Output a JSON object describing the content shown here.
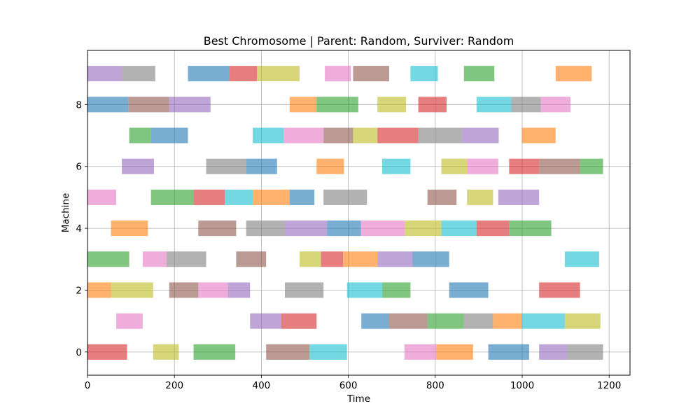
{
  "chart_data": {
    "type": "gantt",
    "title": "Best Chromosome | Parent: Random, Surviver: Random",
    "xlabel": "Time",
    "ylabel": "Machine",
    "xlim": [
      0,
      1248
    ],
    "ylim": [
      -0.75,
      9.75
    ],
    "xticks": [
      0,
      200,
      400,
      600,
      800,
      1000,
      1200
    ],
    "yticks": [
      0,
      2,
      4,
      6,
      8
    ],
    "grid": true,
    "bar_height": 0.5,
    "bar_alpha": 0.6,
    "colors": {
      "red": "#d62728",
      "orange": "#ff7f0e",
      "yellow": "#bcbd22",
      "green": "#2ca02c",
      "blue": "#1f77b4",
      "cyan": "#17becf",
      "pink": "#e377c2",
      "purple": "#9467bd",
      "brown": "#8c564b",
      "gray": "#7f7f7f"
    },
    "tasks": [
      {
        "machine": 0,
        "start": 0,
        "end": 91,
        "color": "red"
      },
      {
        "machine": 0,
        "start": 151,
        "end": 210,
        "color": "yellow"
      },
      {
        "machine": 0,
        "start": 244,
        "end": 340,
        "color": "green"
      },
      {
        "machine": 0,
        "start": 411,
        "end": 511,
        "color": "brown"
      },
      {
        "machine": 0,
        "start": 511,
        "end": 597,
        "color": "cyan"
      },
      {
        "machine": 0,
        "start": 729,
        "end": 803,
        "color": "pink"
      },
      {
        "machine": 0,
        "start": 803,
        "end": 887,
        "color": "orange"
      },
      {
        "machine": 0,
        "start": 922,
        "end": 1016,
        "color": "blue"
      },
      {
        "machine": 0,
        "start": 1039,
        "end": 1103,
        "color": "purple"
      },
      {
        "machine": 0,
        "start": 1103,
        "end": 1186,
        "color": "gray"
      },
      {
        "machine": 1,
        "start": 66,
        "end": 127,
        "color": "pink"
      },
      {
        "machine": 1,
        "start": 374,
        "end": 446,
        "color": "purple"
      },
      {
        "machine": 1,
        "start": 446,
        "end": 527,
        "color": "red"
      },
      {
        "machine": 1,
        "start": 630,
        "end": 694,
        "color": "blue"
      },
      {
        "machine": 1,
        "start": 694,
        "end": 782,
        "color": "brown"
      },
      {
        "machine": 1,
        "start": 782,
        "end": 866,
        "color": "green"
      },
      {
        "machine": 1,
        "start": 866,
        "end": 933,
        "color": "gray"
      },
      {
        "machine": 1,
        "start": 933,
        "end": 999,
        "color": "orange"
      },
      {
        "machine": 1,
        "start": 999,
        "end": 1098,
        "color": "cyan"
      },
      {
        "machine": 1,
        "start": 1098,
        "end": 1180,
        "color": "yellow"
      },
      {
        "machine": 2,
        "start": 0,
        "end": 54,
        "color": "orange"
      },
      {
        "machine": 2,
        "start": 54,
        "end": 151,
        "color": "yellow"
      },
      {
        "machine": 2,
        "start": 188,
        "end": 255,
        "color": "brown"
      },
      {
        "machine": 2,
        "start": 255,
        "end": 323,
        "color": "pink"
      },
      {
        "machine": 2,
        "start": 323,
        "end": 374,
        "color": "purple"
      },
      {
        "machine": 2,
        "start": 454,
        "end": 543,
        "color": "gray"
      },
      {
        "machine": 2,
        "start": 597,
        "end": 678,
        "color": "cyan"
      },
      {
        "machine": 2,
        "start": 678,
        "end": 743,
        "color": "green"
      },
      {
        "machine": 2,
        "start": 832,
        "end": 922,
        "color": "blue"
      },
      {
        "machine": 2,
        "start": 1039,
        "end": 1133,
        "color": "red"
      },
      {
        "machine": 3,
        "start": 0,
        "end": 96,
        "color": "green"
      },
      {
        "machine": 3,
        "start": 127,
        "end": 182,
        "color": "pink"
      },
      {
        "machine": 3,
        "start": 182,
        "end": 273,
        "color": "gray"
      },
      {
        "machine": 3,
        "start": 342,
        "end": 411,
        "color": "brown"
      },
      {
        "machine": 3,
        "start": 488,
        "end": 537,
        "color": "yellow"
      },
      {
        "machine": 3,
        "start": 537,
        "end": 588,
        "color": "red"
      },
      {
        "machine": 3,
        "start": 588,
        "end": 667,
        "color": "orange"
      },
      {
        "machine": 3,
        "start": 667,
        "end": 748,
        "color": "purple"
      },
      {
        "machine": 3,
        "start": 748,
        "end": 832,
        "color": "blue"
      },
      {
        "machine": 3,
        "start": 1098,
        "end": 1177,
        "color": "cyan"
      },
      {
        "machine": 4,
        "start": 54,
        "end": 139,
        "color": "orange"
      },
      {
        "machine": 4,
        "start": 255,
        "end": 342,
        "color": "brown"
      },
      {
        "machine": 4,
        "start": 365,
        "end": 454,
        "color": "gray"
      },
      {
        "machine": 4,
        "start": 454,
        "end": 551,
        "color": "purple"
      },
      {
        "machine": 4,
        "start": 551,
        "end": 629,
        "color": "blue"
      },
      {
        "machine": 4,
        "start": 629,
        "end": 730,
        "color": "pink"
      },
      {
        "machine": 4,
        "start": 730,
        "end": 814,
        "color": "yellow"
      },
      {
        "machine": 4,
        "start": 814,
        "end": 895,
        "color": "cyan"
      },
      {
        "machine": 4,
        "start": 895,
        "end": 970,
        "color": "red"
      },
      {
        "machine": 4,
        "start": 970,
        "end": 1067,
        "color": "green"
      },
      {
        "machine": 5,
        "start": 0,
        "end": 66,
        "color": "pink"
      },
      {
        "machine": 5,
        "start": 146,
        "end": 244,
        "color": "green"
      },
      {
        "machine": 5,
        "start": 244,
        "end": 316,
        "color": "red"
      },
      {
        "machine": 5,
        "start": 316,
        "end": 380,
        "color": "cyan"
      },
      {
        "machine": 5,
        "start": 380,
        "end": 465,
        "color": "orange"
      },
      {
        "machine": 5,
        "start": 465,
        "end": 522,
        "color": "blue"
      },
      {
        "machine": 5,
        "start": 543,
        "end": 643,
        "color": "gray"
      },
      {
        "machine": 5,
        "start": 782,
        "end": 849,
        "color": "brown"
      },
      {
        "machine": 5,
        "start": 873,
        "end": 933,
        "color": "yellow"
      },
      {
        "machine": 5,
        "start": 945,
        "end": 1039,
        "color": "purple"
      },
      {
        "machine": 6,
        "start": 79,
        "end": 153,
        "color": "purple"
      },
      {
        "machine": 6,
        "start": 273,
        "end": 365,
        "color": "gray"
      },
      {
        "machine": 6,
        "start": 365,
        "end": 436,
        "color": "blue"
      },
      {
        "machine": 6,
        "start": 527,
        "end": 590,
        "color": "orange"
      },
      {
        "machine": 6,
        "start": 678,
        "end": 743,
        "color": "cyan"
      },
      {
        "machine": 6,
        "start": 814,
        "end": 873,
        "color": "yellow"
      },
      {
        "machine": 6,
        "start": 873,
        "end": 945,
        "color": "pink"
      },
      {
        "machine": 6,
        "start": 970,
        "end": 1039,
        "color": "red"
      },
      {
        "machine": 6,
        "start": 1039,
        "end": 1133,
        "color": "brown"
      },
      {
        "machine": 6,
        "start": 1133,
        "end": 1186,
        "color": "green"
      },
      {
        "machine": 7,
        "start": 96,
        "end": 146,
        "color": "green"
      },
      {
        "machine": 7,
        "start": 146,
        "end": 231,
        "color": "blue"
      },
      {
        "machine": 7,
        "start": 380,
        "end": 451,
        "color": "cyan"
      },
      {
        "machine": 7,
        "start": 451,
        "end": 543,
        "color": "pink"
      },
      {
        "machine": 7,
        "start": 543,
        "end": 611,
        "color": "brown"
      },
      {
        "machine": 7,
        "start": 611,
        "end": 667,
        "color": "yellow"
      },
      {
        "machine": 7,
        "start": 667,
        "end": 761,
        "color": "red"
      },
      {
        "machine": 7,
        "start": 761,
        "end": 861,
        "color": "gray"
      },
      {
        "machine": 7,
        "start": 861,
        "end": 946,
        "color": "purple"
      },
      {
        "machine": 7,
        "start": 999,
        "end": 1077,
        "color": "orange"
      },
      {
        "machine": 8,
        "start": 0,
        "end": 94,
        "color": "blue"
      },
      {
        "machine": 8,
        "start": 94,
        "end": 188,
        "color": "brown"
      },
      {
        "machine": 8,
        "start": 188,
        "end": 283,
        "color": "purple"
      },
      {
        "machine": 8,
        "start": 465,
        "end": 527,
        "color": "orange"
      },
      {
        "machine": 8,
        "start": 527,
        "end": 623,
        "color": "green"
      },
      {
        "machine": 8,
        "start": 667,
        "end": 733,
        "color": "yellow"
      },
      {
        "machine": 8,
        "start": 761,
        "end": 826,
        "color": "red"
      },
      {
        "machine": 8,
        "start": 895,
        "end": 975,
        "color": "cyan"
      },
      {
        "machine": 8,
        "start": 975,
        "end": 1043,
        "color": "gray"
      },
      {
        "machine": 8,
        "start": 1043,
        "end": 1111,
        "color": "pink"
      },
      {
        "machine": 9,
        "start": 0,
        "end": 79,
        "color": "purple"
      },
      {
        "machine": 9,
        "start": 79,
        "end": 156,
        "color": "gray"
      },
      {
        "machine": 9,
        "start": 231,
        "end": 327,
        "color": "blue"
      },
      {
        "machine": 9,
        "start": 327,
        "end": 390,
        "color": "red"
      },
      {
        "machine": 9,
        "start": 390,
        "end": 488,
        "color": "yellow"
      },
      {
        "machine": 9,
        "start": 546,
        "end": 606,
        "color": "pink"
      },
      {
        "machine": 9,
        "start": 611,
        "end": 694,
        "color": "brown"
      },
      {
        "machine": 9,
        "start": 743,
        "end": 806,
        "color": "cyan"
      },
      {
        "machine": 9,
        "start": 866,
        "end": 936,
        "color": "green"
      },
      {
        "machine": 9,
        "start": 1077,
        "end": 1160,
        "color": "orange"
      }
    ]
  }
}
